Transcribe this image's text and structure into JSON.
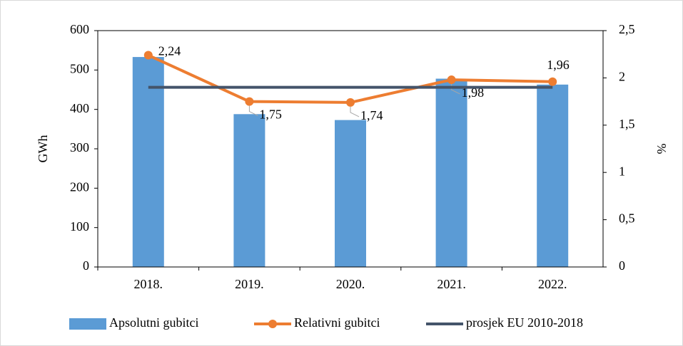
{
  "chart_data": {
    "type": "bar",
    "categories": [
      "2018.",
      "2019.",
      "2020.",
      "2021.",
      "2022."
    ],
    "series": [
      {
        "name": "Apsolutni gubitci",
        "type": "bar",
        "color": "#5b9bd5",
        "values": [
          533,
          388,
          373,
          478,
          463
        ]
      },
      {
        "name": "Relativni gubitci",
        "type": "line",
        "axis": "y2",
        "color": "#ed7d31",
        "values": [
          2.24,
          1.75,
          1.74,
          1.98,
          1.96
        ],
        "value_labels": [
          "2,24",
          "1,75",
          "1,74",
          "1,98",
          "1,96"
        ]
      },
      {
        "name": "prosjek EU 2010-2018",
        "type": "line",
        "axis": "y2",
        "color": "#44546a",
        "values": [
          1.9,
          1.9,
          1.9,
          1.9,
          1.9
        ]
      }
    ],
    "ylabel": "GWh",
    "y2label": "%",
    "ylim": [
      0,
      600
    ],
    "yticks": [
      0,
      100,
      200,
      300,
      400,
      500,
      600
    ],
    "y2lim": [
      0,
      2.5
    ],
    "y2ticks": [
      0,
      {
        "value": 0.5,
        "label": "0,5"
      },
      1,
      {
        "value": 1.5,
        "label": "1,5"
      },
      2,
      {
        "value": 2.5,
        "label": "2,5"
      }
    ],
    "legend": "bottom"
  }
}
